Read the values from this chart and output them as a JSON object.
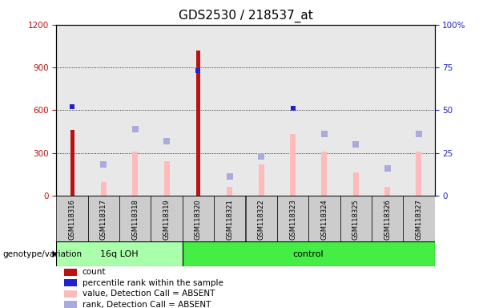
{
  "title": "GDS2530 / 218537_at",
  "samples": [
    "GSM118316",
    "GSM118317",
    "GSM118318",
    "GSM118319",
    "GSM118320",
    "GSM118321",
    "GSM118322",
    "GSM118323",
    "GSM118324",
    "GSM118325",
    "GSM118326",
    "GSM118327"
  ],
  "count_values": [
    460,
    0,
    0,
    0,
    1020,
    0,
    0,
    0,
    0,
    0,
    0,
    0
  ],
  "percentile_rank_pct": [
    52,
    0,
    0,
    0,
    73,
    0,
    0,
    51,
    0,
    0,
    0,
    0
  ],
  "absent_value": [
    0,
    95,
    310,
    240,
    0,
    60,
    220,
    430,
    310,
    165,
    60,
    310
  ],
  "absent_rank_pct": [
    0,
    18,
    39,
    32,
    0,
    11,
    23,
    0,
    36,
    30,
    16,
    36
  ],
  "count_color": "#bb1111",
  "percentile_color": "#2222cc",
  "absent_value_color": "#ffbbbb",
  "absent_rank_color": "#aaaadd",
  "group1_label": "16q LOH",
  "group2_label": "control",
  "group1_color": "#aaffaa",
  "group2_color": "#44ee44",
  "ylim_left": [
    0,
    1200
  ],
  "ylim_right": [
    0,
    100
  ],
  "yticks_left": [
    0,
    300,
    600,
    900,
    1200
  ],
  "yticks_right": [
    0,
    25,
    50,
    75,
    100
  ],
  "ytick_labels_left": [
    "0",
    "300",
    "600",
    "900",
    "1200"
  ],
  "ytick_labels_right": [
    "0",
    "25",
    "50",
    "75",
    "100%"
  ],
  "bg_color": "#e8e8e8",
  "genotype_label": "genotype/variation",
  "legend_items": [
    {
      "color": "#bb1111",
      "label": "count"
    },
    {
      "color": "#2222cc",
      "label": "percentile rank within the sample"
    },
    {
      "color": "#ffbbbb",
      "label": "value, Detection Call = ABSENT"
    },
    {
      "color": "#aaaadd",
      "label": "rank, Detection Call = ABSENT"
    }
  ]
}
